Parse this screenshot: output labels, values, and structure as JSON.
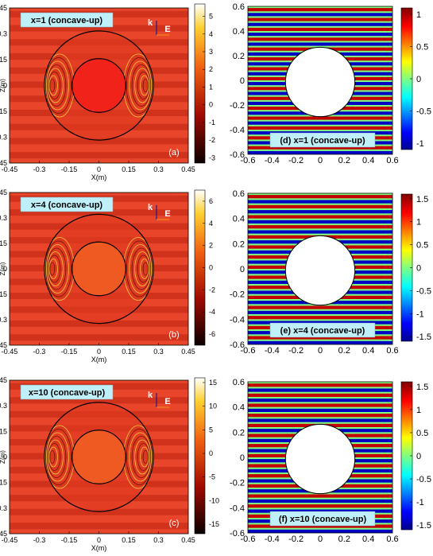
{
  "figure": {
    "left_column": [
      {
        "tag": "x=1 (concave-up)",
        "panel_letter": "(a)",
        "xlabel": "X(m)",
        "ylabel": "Z(m)",
        "xticks": [
          "-0.45",
          "-0.3",
          "-0.15",
          "0",
          "0.15",
          "0.3",
          "0.45"
        ],
        "yticks": [
          "0.45",
          "0.3",
          "0.15",
          "0",
          "-0.15",
          "-0.3",
          "-0.45"
        ],
        "cbar_ticks": [
          "5",
          "4",
          "3",
          "2",
          "1",
          "0",
          "-1",
          "-2",
          "-3"
        ],
        "cbar_range": [
          -3.3,
          5.7
        ],
        "k_label": "k",
        "e_label": "E"
      },
      {
        "tag": "x=4 (concave-up)",
        "panel_letter": "(b)",
        "xlabel": "X(m)",
        "ylabel": "Z(m)",
        "xticks": [
          "-0.45",
          "-0.3",
          "-0.15",
          "0",
          "0.15",
          "0.3",
          "0.45"
        ],
        "yticks": [
          "0.45",
          "0.3",
          "0.15",
          "0",
          "-0.15",
          "-0.3",
          "-0.45"
        ],
        "cbar_ticks": [
          "6",
          "4",
          "2",
          "0",
          "-2",
          "-4",
          "-6"
        ],
        "cbar_range": [
          -7,
          7
        ],
        "k_label": "k",
        "e_label": "E"
      },
      {
        "tag": "x=10 (concave-up)",
        "panel_letter": "(c)",
        "xlabel": "X(m)",
        "ylabel": "Z(m)",
        "xticks": [
          "-0.45",
          "-0.3",
          "-0.15",
          "0",
          "0.15",
          "0.3",
          "0.45"
        ],
        "yticks": [
          "0.45",
          "0.3",
          "0.15",
          "0",
          "-0.15",
          "-0.3",
          "-0.45"
        ],
        "cbar_ticks": [
          "15",
          "10",
          "5",
          "0",
          "-5",
          "-10",
          "-15"
        ],
        "cbar_range": [
          -17,
          16
        ],
        "k_label": "k",
        "e_label": "E"
      }
    ],
    "right_column": [
      {
        "tag": "(d) x=1 (concave-up)",
        "xticks": [
          "-0.6",
          "-0.4",
          "-0.2",
          "0",
          "0.2",
          "0.4",
          "0.6"
        ],
        "yticks": [
          "0.6",
          "0.4",
          "0.2",
          "0",
          "-0.2",
          "-0.4",
          "-0.6"
        ],
        "cbar_ticks": [
          "1",
          "0.5",
          "0",
          "-0.5",
          "-1"
        ],
        "cbar_range": [
          -1.1,
          1.1
        ]
      },
      {
        "tag": "(e) x=4 (concave-up)",
        "xticks": [
          "-0.6",
          "-0.4",
          "-0.2",
          "0",
          "0.2",
          "0.4",
          "0.6"
        ],
        "yticks": [
          "0.6",
          "0.4",
          "0.2",
          "0",
          "-0.2",
          "-0.4",
          "-0.6"
        ],
        "cbar_ticks": [
          "1.5",
          "1",
          "0.5",
          "0",
          "-0.5",
          "-1",
          "-1.5"
        ],
        "cbar_range": [
          -1.6,
          1.6
        ]
      },
      {
        "tag": "(f) x=10 (concave-up)",
        "xticks": [
          "-0.6",
          "-0.4",
          "-0.2",
          "0",
          "0.2",
          "0.4",
          "0.6"
        ],
        "yticks": [
          "0.6",
          "0.4",
          "0.2",
          "0",
          "-0.2",
          "-0.4",
          "-0.6"
        ],
        "cbar_ticks": [
          "1.5",
          "1",
          "0.5",
          "0",
          "-0.5",
          "-1",
          "-1.5"
        ],
        "cbar_range": [
          -1.6,
          1.6
        ]
      }
    ],
    "colors": {
      "hot_dark": "#b51a0c",
      "hot_mid": "#e8452a",
      "hot_light": "#f7e24a",
      "tag_bg": "#bff0fa",
      "k_arrow": "#1b1b8a",
      "e_arrow": "#f08a1a"
    }
  }
}
